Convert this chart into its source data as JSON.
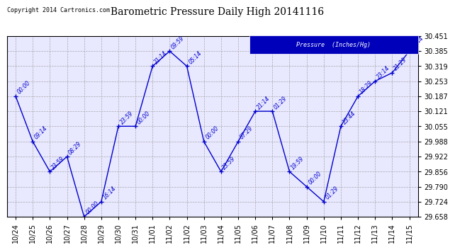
{
  "title": "Barometric Pressure Daily High 20141116",
  "copyright_text": "Copyright 2014 Cartronics.com",
  "legend_label": "Pressure  (Inches/Hg)",
  "fig_bg_color": "#ffffff",
  "plot_bg_color": "#e8e8ff",
  "line_color": "#0000cc",
  "text_color": "#0000cc",
  "grid_color": "#aaaaaa",
  "ylim": [
    29.658,
    30.451
  ],
  "yticks": [
    29.658,
    29.724,
    29.79,
    29.856,
    29.922,
    29.988,
    30.055,
    30.121,
    30.187,
    30.253,
    30.319,
    30.385,
    30.451
  ],
  "data_points": [
    {
      "x": 0,
      "date": "10/24",
      "time": "00:00",
      "value": 30.187
    },
    {
      "x": 1,
      "date": "10/25",
      "time": "09:14",
      "value": 29.988
    },
    {
      "x": 2,
      "date": "10/26",
      "time": "23:59",
      "value": 29.856
    },
    {
      "x": 3,
      "date": "10/27",
      "time": "08:29",
      "value": 29.922
    },
    {
      "x": 4,
      "date": "10/28",
      "time": "00:00",
      "value": 29.658
    },
    {
      "x": 5,
      "date": "10/29",
      "time": "16:14",
      "value": 29.724
    },
    {
      "x": 6,
      "date": "10/30",
      "time": "23:59",
      "value": 30.055
    },
    {
      "x": 7,
      "date": "10/31",
      "time": "00:00",
      "value": 30.055
    },
    {
      "x": 8,
      "date": "11/01",
      "time": "21:14",
      "value": 30.319
    },
    {
      "x": 9,
      "date": "11/02",
      "time": "09:59",
      "value": 30.385
    },
    {
      "x": 10,
      "date": "11/02",
      "time": "05:14",
      "value": 30.319
    },
    {
      "x": 11,
      "date": "11/03",
      "time": "00:00",
      "value": 29.988
    },
    {
      "x": 12,
      "date": "11/04",
      "time": "23:59",
      "value": 29.856
    },
    {
      "x": 13,
      "date": "11/05",
      "time": "07:29",
      "value": 29.988
    },
    {
      "x": 14,
      "date": "11/06",
      "time": "21:14",
      "value": 30.121
    },
    {
      "x": 15,
      "date": "11/07",
      "time": "01:29",
      "value": 30.121
    },
    {
      "x": 16,
      "date": "11/08",
      "time": "19:59",
      "value": 29.856
    },
    {
      "x": 17,
      "date": "11/09",
      "time": "00:00",
      "value": 29.79
    },
    {
      "x": 18,
      "date": "11/10",
      "time": "01:29",
      "value": 29.724
    },
    {
      "x": 19,
      "date": "11/11",
      "time": "23:44",
      "value": 30.055
    },
    {
      "x": 20,
      "date": "11/12",
      "time": "18:29",
      "value": 30.187
    },
    {
      "x": 21,
      "date": "11/13",
      "time": "23:14",
      "value": 30.253
    },
    {
      "x": 22,
      "date": "11/14",
      "time": "21:29",
      "value": 30.29
    },
    {
      "x": 23,
      "date": "11/15",
      "time": "07:44",
      "value": 30.385
    }
  ]
}
